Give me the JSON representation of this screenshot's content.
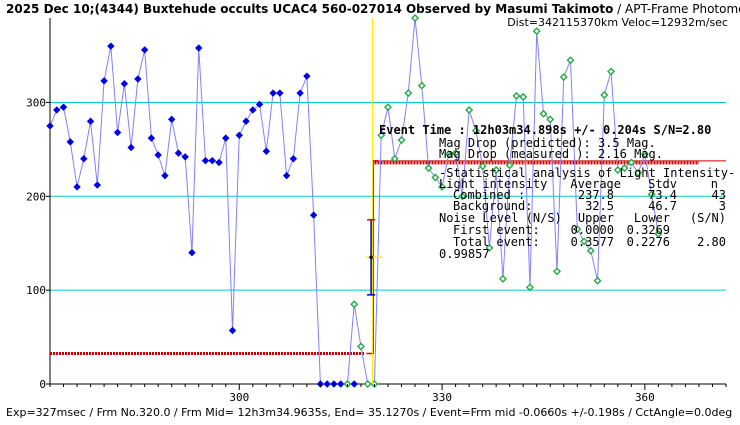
{
  "header": {
    "title_main": "2025 Dec 10;(4344) Buxtehude occults UCAC4 560-027014 Observed by Masumi Takimoto",
    "title_method": " / APT-Frame Photometry /",
    "title_line2": "Dist=342115370km Veloc=12932m/sec"
  },
  "footer": {
    "text": "Exp=327msec / Frm No.320.0 / Frm Mid= 12h3m34.9635s, End= 35.1270s / Event=Frm mid -0.0660s +/-0.198s / CctAngle=0.0deg"
  },
  "colors": {
    "background": "#ffffff",
    "gridline": "#00cccc",
    "series_line": "#8080ff",
    "before_marker": "#0000e6",
    "after_marker": "#22aa44",
    "level_line": "#cc0000",
    "event_line": "#ffee00",
    "drop_line": "#cc0000",
    "error_bar": "#0000aa",
    "marker_red": "#dd0000"
  },
  "info": {
    "event_time": "Event Time : 12h03m34.898s  +/- 0.204s  S/N=2.80",
    "mag_pred": "Mag Drop (predicted):  3.5   Mag.",
    "mag_meas": "Mag Drop (measured ):  2.16  Mag.",
    "stat_title": "-Statistical analysis of Light Intensity-",
    "hdr_cols": [
      "Light intensity",
      "Average",
      "Stdv",
      "n"
    ],
    "combined": [
      "Combined  :",
      "237.8",
      "73.4",
      "43"
    ],
    "background": [
      "Background:",
      "32.5",
      "46.7",
      "3"
    ],
    "noise_hdr": [
      "Noise Level (N/S)",
      "Upper",
      "Lower",
      "(S/N)"
    ],
    "first_event": [
      "First event:",
      "0.0000",
      "0.3269",
      ""
    ],
    "total_event": [
      "Total event:",
      "0.3577",
      "0.2276",
      "2.80"
    ],
    "extra": "0.99857"
  },
  "chart_data": {
    "type": "line",
    "title": "2025 Dec 10;(4344) Buxtehude occults UCAC4 560-027014 Observed by Masumi Takimoto",
    "xlabel": "",
    "ylabel": "",
    "xlim": [
      272,
      372
    ],
    "ylim": [
      0,
      390
    ],
    "x_ticks": [
      300,
      330,
      360
    ],
    "y_ticks": [
      0,
      100,
      200,
      300
    ],
    "grid": "horizontal lines at y ticks",
    "background_level": 32.5,
    "combined_level": 237.8,
    "event_frame": 320.0,
    "event_level": 135,
    "event_error_frames": 0.6,
    "drop_bar": {
      "frame": 319.5,
      "upper": 175,
      "lower": 95
    },
    "series": [
      {
        "marker": "filled diamond",
        "x": [
          272,
          273,
          274,
          275,
          276,
          277,
          278,
          279,
          280,
          281,
          282,
          283,
          284,
          285,
          286,
          287,
          288,
          289,
          290,
          291,
          292,
          293,
          294,
          295,
          296,
          297,
          298,
          299,
          300,
          301,
          302,
          303,
          304,
          305,
          306,
          307,
          308,
          309,
          310,
          311,
          312,
          313,
          314,
          315,
          316,
          317
        ],
        "y": [
          275,
          292,
          295,
          258,
          210,
          240,
          280,
          212,
          323,
          360,
          268,
          320,
          252,
          325,
          356,
          262,
          244,
          222,
          282,
          246,
          242,
          140,
          358,
          238,
          238,
          236,
          262,
          57,
          265,
          280,
          292,
          298,
          248,
          310,
          310,
          222,
          240,
          310,
          328,
          180,
          0,
          0,
          0,
          0,
          0,
          0
        ]
      },
      {
        "marker": "open diamond",
        "x": [
          316,
          317,
          318,
          319,
          320,
          321,
          322,
          323,
          324,
          325,
          326,
          327,
          328,
          329,
          330,
          331,
          332,
          333,
          334,
          335,
          336,
          337,
          338,
          339,
          340,
          341,
          342,
          343,
          344,
          345,
          346,
          347,
          348,
          349,
          350,
          351,
          352,
          353,
          354,
          355,
          356,
          357,
          358,
          359,
          360,
          361,
          362
        ],
        "y": [
          0,
          85,
          40,
          0,
          0,
          265,
          295,
          240,
          260,
          310,
          390,
          318,
          230,
          220,
          210,
          245,
          246,
          200,
          292,
          270,
          232,
          145,
          228,
          112,
          233,
          307,
          306,
          103,
          376,
          288,
          282,
          120,
          327,
          345,
          165,
          152,
          142,
          110,
          308,
          333,
          228,
          230,
          236,
          225,
          245,
          202,
          160
        ]
      }
    ]
  }
}
